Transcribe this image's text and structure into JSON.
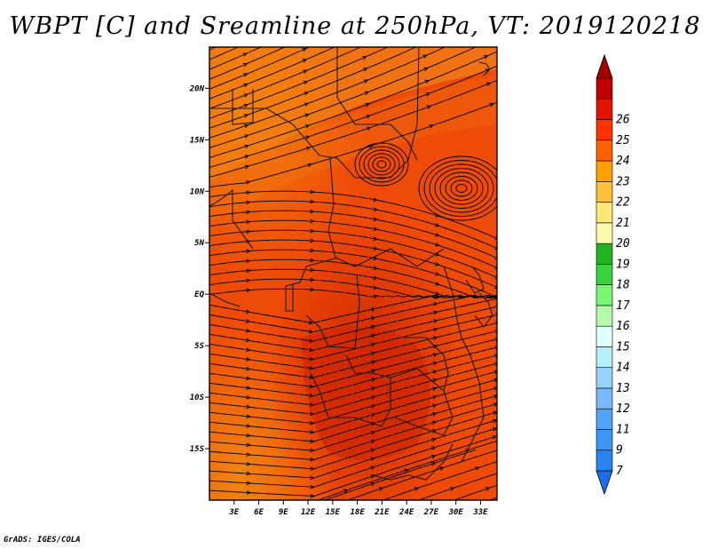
{
  "chart_data": {
    "type": "heatmap",
    "title": "WBPT [C] and Sreamline at 250hPa, VT: 2019120218",
    "xlabel": "",
    "ylabel": "",
    "xlim": [
      0,
      35
    ],
    "ylim": [
      -20,
      24
    ],
    "x_ticks": [
      {
        "value": 3,
        "label": "3E"
      },
      {
        "value": 6,
        "label": "6E"
      },
      {
        "value": 9,
        "label": "9E"
      },
      {
        "value": 12,
        "label": "12E"
      },
      {
        "value": 15,
        "label": "15E"
      },
      {
        "value": 18,
        "label": "18E"
      },
      {
        "value": 21,
        "label": "21E"
      },
      {
        "value": 24,
        "label": "24E"
      },
      {
        "value": 27,
        "label": "27E"
      },
      {
        "value": 30,
        "label": "30E"
      },
      {
        "value": 33,
        "label": "33E"
      }
    ],
    "y_ticks": [
      {
        "value": 20,
        "label": "20N"
      },
      {
        "value": 15,
        "label": "15N"
      },
      {
        "value": 10,
        "label": "10N"
      },
      {
        "value": 5,
        "label": "5N"
      },
      {
        "value": 0,
        "label": "EQ"
      },
      {
        "value": -5,
        "label": "5S"
      },
      {
        "value": -10,
        "label": "10S"
      },
      {
        "value": -15,
        "label": "15S"
      }
    ],
    "colorbar": {
      "levels": [
        "7",
        "9",
        "11",
        "12",
        "13",
        "14",
        "15",
        "16",
        "17",
        "18",
        "19",
        "20",
        "21",
        "22",
        "23",
        "24",
        "25",
        "26"
      ],
      "colors": [
        "#1e6eeb",
        "#2882f0",
        "#3c96f5",
        "#50a5f5",
        "#78b9fa",
        "#96d2fa",
        "#b4f0fa",
        "#e1ffff",
        "#b4faaa",
        "#78f573",
        "#37d23c",
        "#1eb41e",
        "#fffaaa",
        "#ffe878",
        "#ffc03c",
        "#ffa000",
        "#ff6000",
        "#ff3200",
        "#e11400",
        "#c00000",
        "#a50000"
      ]
    },
    "dominant_range": "22-25"
  },
  "footer": "GrADS: IGES/COLA"
}
